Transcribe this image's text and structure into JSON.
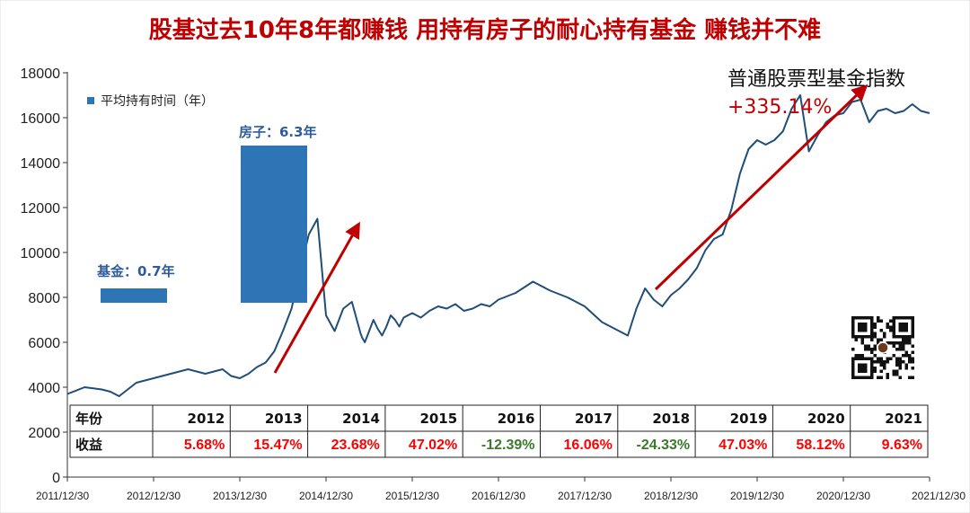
{
  "chart_data": {
    "type": "line",
    "title": "股基过去10年8年都赚钱 用持有房子的耐心持有基金 赚钱并不难",
    "ylim": [
      0,
      18000
    ],
    "yticks": [
      0,
      2000,
      4000,
      6000,
      8000,
      10000,
      12000,
      14000,
      16000,
      18000
    ],
    "x_tick_labels": [
      "2011/12/30",
      "2012/12/30",
      "2013/12/30",
      "2014/12/30",
      "2015/12/30",
      "2016/12/30",
      "2017/12/30",
      "2018/12/30",
      "2019/12/30",
      "2020/12/30",
      "2021/12/30"
    ],
    "series": [
      {
        "name": "普通股票型基金指数",
        "x": [
          0,
          0.1,
          0.2,
          0.3,
          0.4,
          0.5,
          0.6,
          0.7,
          0.8,
          0.9,
          1.0,
          1.1,
          1.2,
          1.3,
          1.4,
          1.5,
          1.6,
          1.7,
          1.8,
          1.9,
          2.0,
          2.1,
          2.2,
          2.3,
          2.4,
          2.5,
          2.6,
          2.7,
          2.8,
          2.9,
          3.0,
          3.1,
          3.2,
          3.3,
          3.4,
          3.42,
          3.45,
          3.48,
          3.5,
          3.55,
          3.6,
          3.65,
          3.7,
          3.75,
          3.8,
          3.85,
          3.9,
          4.0,
          4.1,
          4.2,
          4.3,
          4.4,
          4.5,
          4.6,
          4.7,
          4.8,
          4.9,
          5.0,
          5.2,
          5.4,
          5.6,
          5.8,
          6.0,
          6.2,
          6.4,
          6.5,
          6.6,
          6.7,
          6.8,
          6.9,
          7.0,
          7.1,
          7.2,
          7.3,
          7.4,
          7.5,
          7.6,
          7.7,
          7.8,
          7.9,
          8.0,
          8.1,
          8.2,
          8.3,
          8.4,
          8.5,
          8.6,
          8.7,
          8.8,
          8.9,
          9.0,
          9.1,
          9.2,
          9.3,
          9.4,
          9.5,
          9.6,
          9.7,
          9.8,
          9.9,
          10.0
        ],
        "y": [
          3700,
          3850,
          4000,
          3950,
          3900,
          3800,
          3600,
          3900,
          4200,
          4300,
          4400,
          4500,
          4600,
          4700,
          4800,
          4700,
          4600,
          4700,
          4800,
          4500,
          4400,
          4600,
          4900,
          5100,
          5600,
          6500,
          7500,
          9200,
          10800,
          11500,
          7200,
          6500,
          7500,
          7800,
          6400,
          6200,
          6000,
          6300,
          6500,
          7000,
          6600,
          6300,
          6700,
          7200,
          7000,
          6700,
          7100,
          7300,
          7100,
          7400,
          7600,
          7500,
          7700,
          7400,
          7500,
          7700,
          7600,
          7900,
          8200,
          8700,
          8300,
          8000,
          7600,
          6900,
          6500,
          6300,
          7500,
          8400,
          7900,
          7600,
          8100,
          8400,
          8800,
          9300,
          10100,
          10600,
          10800,
          11900,
          13500,
          14600,
          15000,
          14800,
          15000,
          15400,
          16400,
          17000,
          14500,
          15200,
          15800,
          16100,
          16200,
          16700,
          16800,
          15800,
          16300,
          16400,
          16200,
          16300,
          16600,
          16300,
          16200
        ]
      }
    ],
    "bars": {
      "legend": "平均持有时间（年）",
      "items": [
        {
          "label": "基金：0.7年",
          "value": 0.7
        },
        {
          "label": "房子：6.3年",
          "value": 6.3
        }
      ]
    },
    "index_annotation": {
      "name": "普通股票型基金指数",
      "gain": "+335.14%"
    },
    "table": {
      "row_labels": [
        "年份",
        "收益"
      ],
      "years": [
        "2012",
        "2013",
        "2014",
        "2015",
        "2016",
        "2017",
        "2018",
        "2019",
        "2020",
        "2021"
      ],
      "returns": [
        "5.68%",
        "15.47%",
        "23.68%",
        "47.02%",
        "-12.39%",
        "16.06%",
        "-24.33%",
        "47.03%",
        "58.12%",
        "9.63%"
      ],
      "return_signs": [
        1,
        1,
        1,
        1,
        -1,
        1,
        -1,
        1,
        1,
        1
      ]
    },
    "colors": {
      "line": "#1f4e79",
      "bar": "#2e75b6",
      "arrow": "#c00000",
      "positive": "#ff0000",
      "negative": "#3a7a2a"
    }
  }
}
